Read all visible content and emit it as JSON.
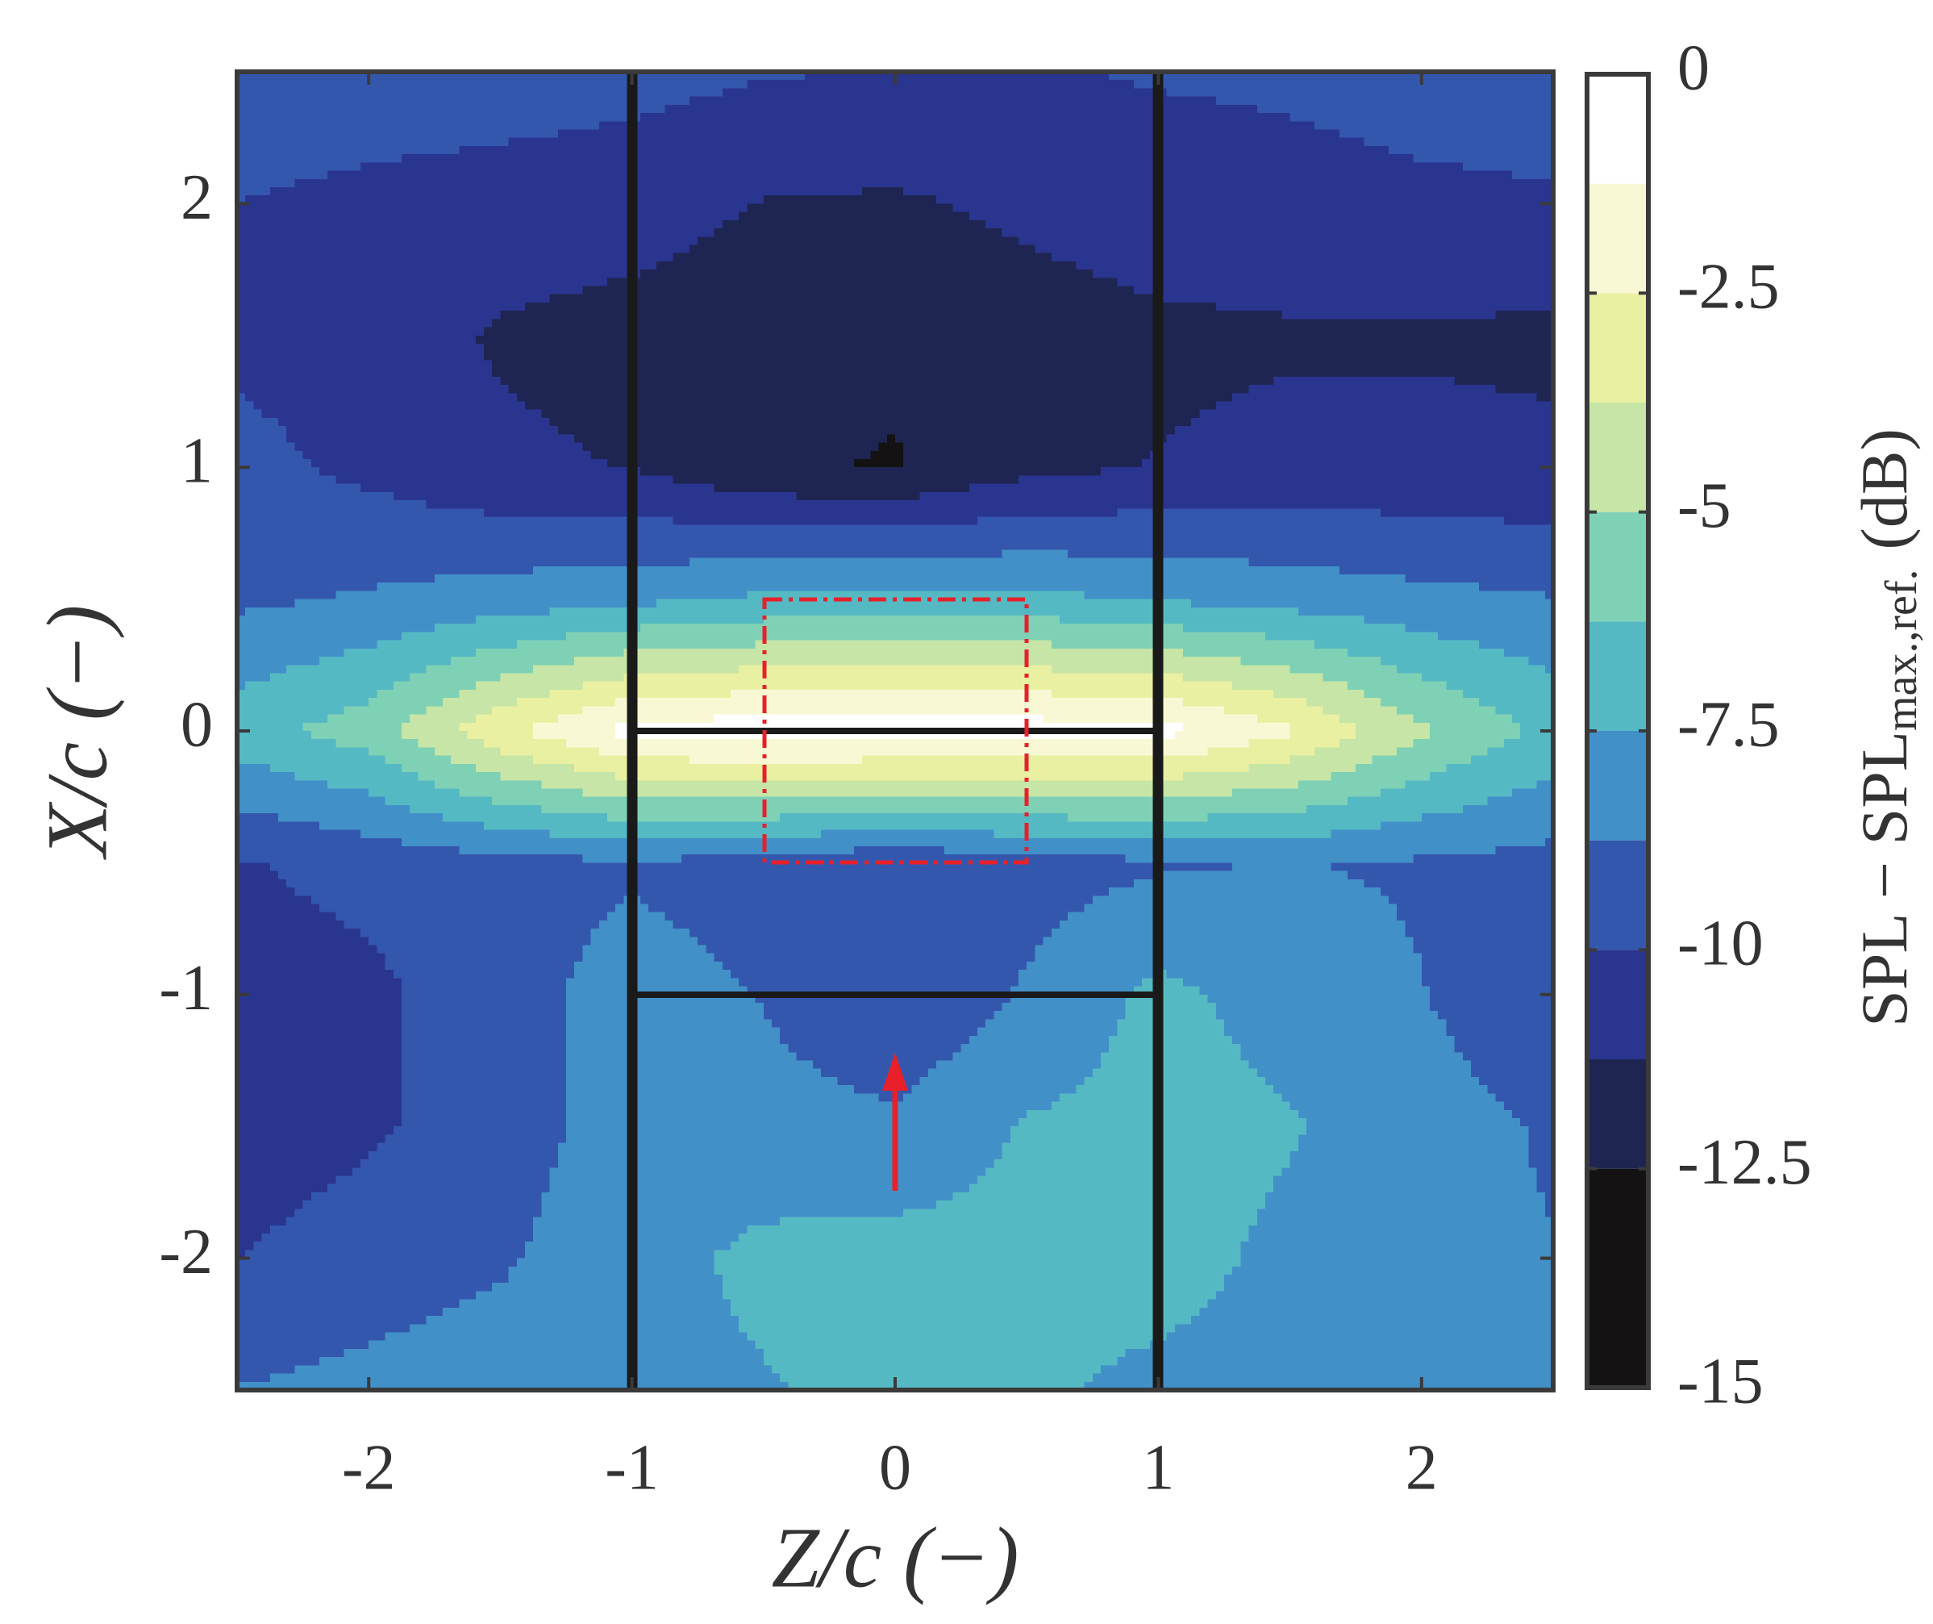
{
  "chart_data": {
    "type": "contourf",
    "xlabel": "Z/c (−)",
    "ylabel": "X/c (−)",
    "x": [
      -2.5,
      -2,
      -1.5,
      -1,
      -0.5,
      0,
      0.5,
      1,
      1.5,
      2,
      2.5
    ],
    "y": [
      2.5,
      2,
      1.5,
      1,
      0.5,
      0,
      -0.5,
      -1,
      -1.5,
      -2,
      -2.5
    ],
    "z": [
      [
        -9.2,
        -9.3,
        -9.4,
        -9.6,
        -9.9,
        -10.1,
        -10.1,
        -9.9,
        -9.8,
        -9.6,
        -9.5
      ],
      [
        -10.0,
        -10.3,
        -10.5,
        -10.7,
        -11.3,
        -11.4,
        -11.0,
        -10.6,
        -10.4,
        -10.2,
        -10.1
      ],
      [
        -10.3,
        -10.6,
        -11.4,
        -11.7,
        -12.0,
        -12.2,
        -11.8,
        -11.5,
        -11.4,
        -11.4,
        -11.5
      ],
      [
        -9.6,
        -10.3,
        -11.0,
        -11.3,
        -12.3,
        -12.6,
        -11.6,
        -11.2,
        -10.9,
        -10.9,
        -11.0
      ],
      [
        -9.0,
        -8.6,
        -8.2,
        -7.8,
        -7.3,
        -7.0,
        -7.2,
        -7.6,
        -8.0,
        -8.4,
        -8.7
      ],
      [
        -6.8,
        -5.6,
        -2.8,
        -0.8,
        -0.5,
        -0.5,
        -0.6,
        -0.8,
        -2.3,
        -4.8,
        -6.6
      ],
      [
        -10.1,
        -9.6,
        -9.1,
        -8.9,
        -9.2,
        -9.8,
        -9.3,
        -8.9,
        -8.7,
        -8.9,
        -9.2
      ],
      [
        -10.6,
        -10.3,
        -9.2,
        -8.3,
        -8.8,
        -9.9,
        -8.6,
        -7.2,
        -8.0,
        -8.7,
        -9.8
      ],
      [
        -10.7,
        -10.2,
        -9.3,
        -8.2,
        -8.3,
        -8.5,
        -7.4,
        -7.0,
        -7.4,
        -8.2,
        -8.9
      ],
      [
        -10.0,
        -9.4,
        -8.9,
        -8.0,
        -7.2,
        -7.0,
        -7.1,
        -7.0,
        -7.8,
        -8.4,
        -8.7
      ],
      [
        -8.7,
        -8.4,
        -8.1,
        -7.9,
        -7.6,
        -7.1,
        -7.3,
        -7.8,
        -8.1,
        -8.2,
        -8.4
      ]
    ],
    "xlim": [
      -2.5,
      2.5
    ],
    "ylim": [
      -2.5,
      2.5
    ],
    "xticks": [
      -2,
      -1,
      0,
      1,
      2
    ],
    "yticks": [
      -2,
      -1,
      0,
      1,
      2
    ],
    "levels": [
      -15,
      -12.5,
      -11.25,
      -10,
      -8.75,
      -7.5,
      -6.25,
      -5,
      -3.75,
      -2.5,
      -1.25,
      0
    ],
    "colors": [
      "#141212",
      "#1f2552",
      "#2a3590",
      "#3457ae",
      "#4290c8",
      "#55b9c4",
      "#7fd1b5",
      "#c6e5a6",
      "#e9f0a2",
      "#f8f9d4",
      "#ffffff"
    ],
    "clim": [
      -15,
      0
    ],
    "cticks": [
      0,
      -2.5,
      -5,
      -7.5,
      -10,
      -12.5,
      -15
    ],
    "colorbar_label": {
      "main": "SPL − SPL",
      "sub": "max.,ref.",
      "unit": "(dB)"
    }
  }
}
